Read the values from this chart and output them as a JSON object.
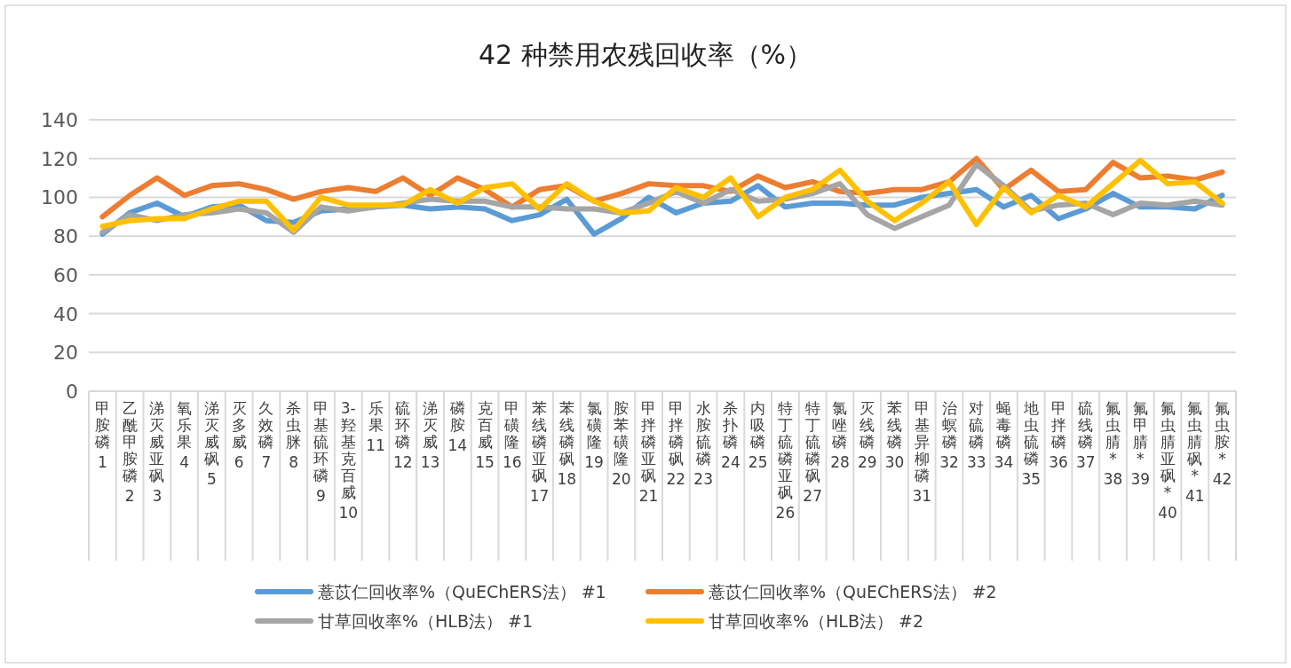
{
  "chart_data": {
    "type": "line",
    "title": "42 种禁用农残回收率（%）",
    "categories": [
      "甲胺磷\n1",
      "乙酰甲胺磷\n2",
      "涕灭威亚砜\n3",
      "氧乐果\n4",
      "涕灭威砜\n5",
      "灭多威\n6",
      "久效磷\n7",
      "杀虫脒\n8",
      "甲基硫环磷\n9",
      "3-羟基克百威\n10",
      "乐果\n11",
      "硫环磷\n12",
      "涕灭威\n13",
      "磷胺\n14",
      "克百威\n15",
      "甲磺隆\n16",
      "苯线磷亚砜\n17",
      "苯线磷砜\n18",
      "氯磺隆\n19",
      "胺苯磺隆\n20",
      "甲拌磷亚砜\n21",
      "甲拌磷砜\n22",
      "水胺硫磷\n23",
      "杀扑磷\n24",
      "内吸磷\n25",
      "特丁硫磷亚砜\n26",
      "特丁硫磷砜\n27",
      "氯唑磷\n28",
      "灭线磷\n29",
      "苯线磷\n30",
      "甲基异柳磷\n31",
      "治螟磷\n32",
      "对硫磷\n33",
      "蝇毒磷\n34",
      "地虫硫磷\n35",
      "甲拌磷\n36",
      "硫线磷\n37",
      "氟虫腈*\n38",
      "氟甲腈*\n39",
      "氟虫腈亚砜*\n40",
      "氟虫腈砜*\n41",
      "氟虫胺*\n42"
    ],
    "series": [
      {
        "name": "薏苡仁回收率%（QuEChERS法） #1",
        "color": "#5b9bd5",
        "values": [
          81,
          92,
          97,
          90,
          95,
          96,
          88,
          87,
          93,
          94,
          95,
          96,
          94,
          95,
          94,
          88,
          91,
          99,
          81,
          89,
          100,
          92,
          97,
          98,
          106,
          95,
          97,
          97,
          96,
          96,
          100,
          102,
          104,
          95,
          101,
          89,
          94,
          102,
          95,
          95,
          94,
          101
        ]
      },
      {
        "name": "薏苡仁回收率%（QuEChERS法） #2",
        "color": "#ed7d31",
        "values": [
          90,
          101,
          110,
          101,
          106,
          107,
          104,
          99,
          103,
          105,
          103,
          110,
          101,
          110,
          104,
          95,
          104,
          106,
          98,
          102,
          107,
          106,
          106,
          103,
          111,
          105,
          108,
          103,
          102,
          104,
          104,
          108,
          120,
          104,
          114,
          103,
          104,
          118,
          110,
          111,
          109,
          113
        ]
      },
      {
        "name": "甘草回收率%（HLB法） #1",
        "color": "#a5a5a5",
        "values": [
          82,
          91,
          88,
          91,
          92,
          94,
          92,
          82,
          95,
          93,
          95,
          97,
          99,
          98,
          98,
          95,
          95,
          94,
          94,
          92,
          97,
          103,
          97,
          104,
          98,
          99,
          102,
          107,
          91,
          84,
          90,
          96,
          117,
          106,
          93,
          96,
          97,
          91,
          97,
          96,
          98,
          96
        ]
      },
      {
        "name": "甘草回收率%（HLB法） #2",
        "color": "#ffc000",
        "values": [
          85,
          88,
          89,
          89,
          94,
          98,
          98,
          83,
          100,
          96,
          96,
          96,
          104,
          97,
          105,
          107,
          94,
          107,
          98,
          92,
          93,
          105,
          100,
          110,
          90,
          100,
          104,
          114,
          98,
          88,
          97,
          108,
          86,
          105,
          92,
          101,
          95,
          107,
          119,
          107,
          108,
          97
        ]
      }
    ],
    "ylim": [
      0,
      140
    ],
    "yticks": [
      0,
      20,
      40,
      60,
      80,
      100,
      120,
      140
    ],
    "grid": "y",
    "legend": "bottom",
    "marker": "none",
    "line_style": "solid"
  }
}
